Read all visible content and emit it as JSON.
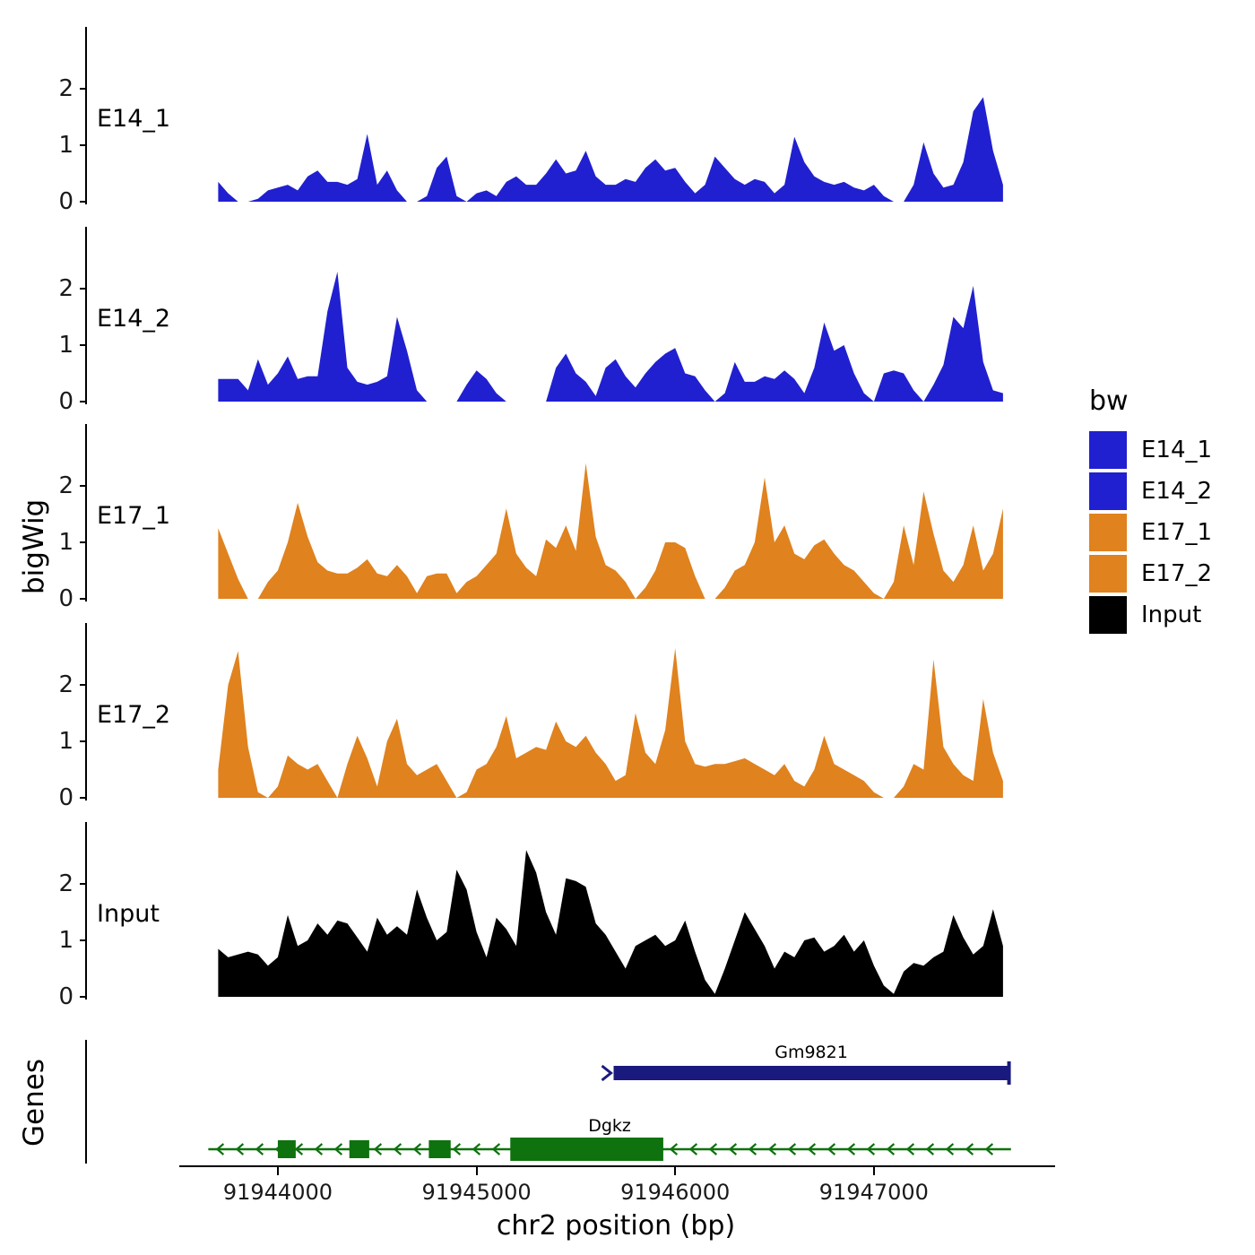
{
  "legend": {
    "title": "bw",
    "items": [
      {
        "label": "E14_1",
        "color": "#2020D0"
      },
      {
        "label": "E14_2",
        "color": "#2020D0"
      },
      {
        "label": "E17_1",
        "color": "#E0821E"
      },
      {
        "label": "E17_2",
        "color": "#E0821E"
      },
      {
        "label": "Input",
        "color": "#000000"
      }
    ]
  },
  "chart_data": {
    "type": "area",
    "genes_panel_label": "Genes",
    "y_tick_labels": [
      "2",
      "1",
      "0"
    ],
    "y_axis": {
      "label": "bigWig",
      "ticks": [
        0,
        1,
        2
      ],
      "ylim": [
        0,
        2.7
      ]
    },
    "x_axis": {
      "label": "chr2 position (bp)",
      "ticks_bp": [
        91944000,
        91945000,
        91946000,
        91947000
      ],
      "tick_labels": [
        "91944000",
        "91945000",
        "91946000",
        "91947000"
      ],
      "range_bp": [
        91943700,
        91947650
      ]
    },
    "x_start": 91943700,
    "x_step": 50,
    "series": [
      {
        "name": "E14_1",
        "color": "#2020D0",
        "values": [
          0.35,
          0.15,
          0,
          0,
          0.05,
          0.2,
          0.25,
          0.3,
          0.2,
          0.45,
          0.55,
          0.35,
          0.35,
          0.3,
          0.4,
          1.2,
          0.3,
          0.55,
          0.2,
          0,
          0,
          0.1,
          0.6,
          0.8,
          0.1,
          0,
          0.15,
          0.2,
          0.1,
          0.35,
          0.45,
          0.3,
          0.3,
          0.5,
          0.75,
          0.5,
          0.55,
          0.9,
          0.45,
          0.3,
          0.3,
          0.4,
          0.35,
          0.6,
          0.75,
          0.55,
          0.6,
          0.35,
          0.15,
          0.3,
          0.8,
          0.6,
          0.4,
          0.3,
          0.4,
          0.35,
          0.15,
          0.3,
          1.15,
          0.7,
          0.45,
          0.35,
          0.3,
          0.35,
          0.25,
          0.2,
          0.3,
          0.1,
          0,
          0,
          0.3,
          1.05,
          0.5,
          0.25,
          0.3,
          0.7,
          1.6,
          1.85,
          0.9,
          0.3
        ]
      },
      {
        "name": "E14_2",
        "color": "#2020D0",
        "values": [
          0.4,
          0.4,
          0.4,
          0.2,
          0.75,
          0.3,
          0.5,
          0.8,
          0.4,
          0.45,
          0.45,
          1.6,
          2.3,
          0.6,
          0.35,
          0.3,
          0.35,
          0.45,
          1.5,
          0.9,
          0.2,
          0,
          0,
          0,
          0,
          0.3,
          0.55,
          0.4,
          0.15,
          0,
          0,
          0,
          0,
          0,
          0.6,
          0.85,
          0.5,
          0.35,
          0.1,
          0.6,
          0.75,
          0.45,
          0.25,
          0.5,
          0.7,
          0.85,
          0.95,
          0.5,
          0.45,
          0.2,
          0,
          0.15,
          0.7,
          0.35,
          0.35,
          0.45,
          0.4,
          0.55,
          0.4,
          0.15,
          0.6,
          1.4,
          0.9,
          1,
          0.5,
          0.15,
          0,
          0.5,
          0.55,
          0.5,
          0.2,
          0,
          0.3,
          0.65,
          1.5,
          1.3,
          2.05,
          0.7,
          0.2,
          0.15
        ]
      },
      {
        "name": "E17_1",
        "color": "#E0821E",
        "values": [
          1.25,
          0.8,
          0.35,
          0,
          0,
          0.3,
          0.5,
          1,
          1.7,
          1.1,
          0.65,
          0.5,
          0.45,
          0.45,
          0.55,
          0.7,
          0.45,
          0.4,
          0.6,
          0.4,
          0.1,
          0.4,
          0.45,
          0.45,
          0.1,
          0.3,
          0.4,
          0.6,
          0.8,
          1.6,
          0.8,
          0.55,
          0.4,
          1.05,
          0.9,
          1.3,
          0.85,
          2.4,
          1.1,
          0.6,
          0.5,
          0.3,
          0,
          0.2,
          0.5,
          1,
          1,
          0.9,
          0.4,
          0,
          0,
          0.2,
          0.5,
          0.6,
          1,
          2.15,
          1,
          1.3,
          0.8,
          0.7,
          0.95,
          1.05,
          0.8,
          0.6,
          0.5,
          0.3,
          0.1,
          0,
          0.3,
          1.3,
          0.6,
          1.9,
          1.15,
          0.5,
          0.3,
          0.6,
          1.3,
          0.5,
          0.8,
          1.6
        ]
      },
      {
        "name": "E17_2",
        "color": "#E0821E",
        "values": [
          0.5,
          2,
          2.6,
          0.9,
          0.1,
          0,
          0.2,
          0.75,
          0.6,
          0.5,
          0.6,
          0.3,
          0,
          0.6,
          1.1,
          0.7,
          0.2,
          1,
          1.4,
          0.6,
          0.4,
          0.5,
          0.6,
          0.3,
          0,
          0.1,
          0.5,
          0.6,
          0.9,
          1.45,
          0.7,
          0.8,
          0.9,
          0.85,
          1.35,
          1,
          0.9,
          1.1,
          0.8,
          0.6,
          0.3,
          0.4,
          1.5,
          0.8,
          0.6,
          1.2,
          2.65,
          1,
          0.6,
          0.55,
          0.6,
          0.6,
          0.65,
          0.7,
          0.6,
          0.5,
          0.4,
          0.6,
          0.3,
          0.2,
          0.5,
          1.1,
          0.6,
          0.5,
          0.4,
          0.3,
          0.1,
          0,
          0,
          0.2,
          0.6,
          0.5,
          2.45,
          0.9,
          0.6,
          0.4,
          0.3,
          1.75,
          0.8,
          0.3
        ]
      },
      {
        "name": "Input",
        "color": "#000000",
        "values": [
          0.85,
          0.7,
          0.75,
          0.8,
          0.75,
          0.55,
          0.7,
          1.45,
          0.9,
          1,
          1.3,
          1.1,
          1.35,
          1.3,
          1.05,
          0.8,
          1.4,
          1.1,
          1.25,
          1.1,
          1.9,
          1.4,
          1,
          1.15,
          2.25,
          1.9,
          1.15,
          0.7,
          1.4,
          1.2,
          0.9,
          2.6,
          2.2,
          1.5,
          1.1,
          2.1,
          2.05,
          1.95,
          1.3,
          1.1,
          0.8,
          0.5,
          0.9,
          1,
          1.1,
          0.9,
          1,
          1.35,
          0.8,
          0.3,
          0.05,
          0.5,
          1,
          1.5,
          1.2,
          0.9,
          0.5,
          0.8,
          0.7,
          1,
          1.05,
          0.8,
          0.9,
          1.1,
          0.8,
          1,
          0.55,
          0.2,
          0.05,
          0.45,
          0.6,
          0.55,
          0.7,
          0.8,
          1.45,
          1.05,
          0.75,
          0.9,
          1.55,
          0.9
        ]
      }
    ],
    "genes": [
      {
        "name": "Gm9821",
        "color": "#1A1A7E",
        "strand": "+",
        "start": 91945690,
        "end": 91947680
      },
      {
        "name": "Dgkz",
        "color": "#0E720E",
        "strand": "-",
        "start": 91943650,
        "end": 91947690,
        "exons": [
          [
            91944000,
            91944090
          ],
          [
            91944360,
            91944460
          ],
          [
            91944760,
            91944870
          ],
          [
            91945170,
            91945940
          ]
        ]
      }
    ]
  }
}
